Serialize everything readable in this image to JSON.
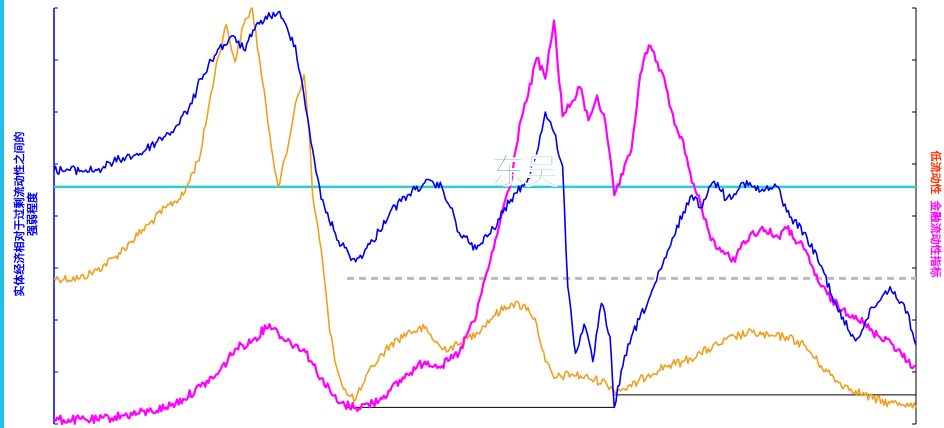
{
  "chart_data": {
    "type": "line",
    "title": "",
    "y_left_label": [
      "实体经济相对于过剩流动性之间的",
      "强弱程度"
    ],
    "y_right_label": [
      "低流动性",
      "金融流动性指标"
    ],
    "watermark": "东吴",
    "grid": false,
    "legend": "none",
    "x_range": [
      0,
      100
    ],
    "y_range": [
      0,
      100
    ],
    "reference_lines": [
      {
        "name": "cyan-horizontal",
        "y": 57,
        "x_from": 0,
        "x_to": 100,
        "color": "#33cccc"
      },
      {
        "name": "gray-dashed",
        "y": 35,
        "x_from": 34,
        "x_to": 100,
        "color": "#bbbbbb"
      },
      {
        "name": "black-line-1",
        "y": 4,
        "x_from": 34,
        "x_to": 65,
        "color": "#000000"
      },
      {
        "name": "black-line-2",
        "y": 7,
        "x_from": 65,
        "x_to": 100,
        "color": "#000000"
      }
    ],
    "series": [
      {
        "color": "#0000ee",
        "points": [
          [
            0,
            61
          ],
          [
            5,
            61
          ],
          [
            8,
            64
          ],
          [
            10,
            65
          ],
          [
            12,
            68
          ],
          [
            14,
            71
          ],
          [
            16,
            77
          ],
          [
            17,
            83
          ],
          [
            19,
            90
          ],
          [
            21,
            93
          ],
          [
            22,
            90
          ],
          [
            24,
            97
          ],
          [
            26,
            99
          ],
          [
            28,
            91
          ],
          [
            29,
            79
          ],
          [
            30,
            66
          ],
          [
            31,
            54
          ],
          [
            33,
            44
          ],
          [
            35,
            39
          ],
          [
            37,
            44
          ],
          [
            39,
            51
          ],
          [
            41,
            55
          ],
          [
            43,
            58
          ],
          [
            45,
            57
          ],
          [
            46,
            52
          ],
          [
            47,
            46
          ],
          [
            49,
            42
          ],
          [
            51,
            47
          ],
          [
            53,
            54
          ],
          [
            55,
            59
          ],
          [
            56,
            65
          ],
          [
            57,
            75
          ],
          [
            58,
            70
          ],
          [
            59,
            62
          ],
          [
            59.6,
            33
          ],
          [
            60.5,
            17
          ],
          [
            61.5,
            24
          ],
          [
            62.5,
            15
          ],
          [
            63.5,
            29
          ],
          [
            64.5,
            21
          ],
          [
            65,
            4
          ],
          [
            66,
            14
          ],
          [
            67,
            21
          ],
          [
            69,
            30
          ],
          [
            71,
            40
          ],
          [
            73,
            51
          ],
          [
            74,
            55
          ],
          [
            75,
            52
          ],
          [
            76,
            57
          ],
          [
            77,
            58
          ],
          [
            78,
            54
          ],
          [
            80,
            58
          ],
          [
            82,
            56
          ],
          [
            84,
            57
          ],
          [
            85,
            51
          ],
          [
            87,
            46
          ],
          [
            89,
            38
          ],
          [
            91,
            27
          ],
          [
            93,
            20
          ],
          [
            95,
            28
          ],
          [
            97,
            33
          ],
          [
            99,
            27
          ],
          [
            100,
            19
          ]
        ]
      },
      {
        "color": "#f0a020",
        "points": [
          [
            0,
            35
          ],
          [
            3,
            35
          ],
          [
            5,
            37
          ],
          [
            7,
            40
          ],
          [
            9,
            44
          ],
          [
            11,
            48
          ],
          [
            13,
            52
          ],
          [
            15,
            55
          ],
          [
            17,
            65
          ],
          [
            18,
            77
          ],
          [
            19,
            88
          ],
          [
            20,
            96
          ],
          [
            21,
            87
          ],
          [
            22,
            96
          ],
          [
            23,
            100
          ],
          [
            24,
            85
          ],
          [
            25,
            70
          ],
          [
            26,
            57
          ],
          [
            27,
            65
          ],
          [
            28,
            77
          ],
          [
            29,
            84
          ],
          [
            29.6,
            70
          ],
          [
            30,
            55
          ],
          [
            31,
            42
          ],
          [
            32,
            22
          ],
          [
            33,
            12
          ],
          [
            34,
            7
          ],
          [
            35,
            6
          ],
          [
            36,
            10
          ],
          [
            37,
            14
          ],
          [
            39,
            19
          ],
          [
            41,
            22
          ],
          [
            43,
            23
          ],
          [
            45,
            18
          ],
          [
            47,
            19
          ],
          [
            49,
            22
          ],
          [
            51,
            26
          ],
          [
            53,
            29
          ],
          [
            55,
            28
          ],
          [
            56,
            24
          ],
          [
            57,
            15
          ],
          [
            58,
            11
          ],
          [
            60,
            12
          ],
          [
            62,
            11
          ],
          [
            64,
            10
          ],
          [
            65,
            8
          ],
          [
            67,
            9
          ],
          [
            69,
            12
          ],
          [
            71,
            14
          ],
          [
            73,
            15
          ],
          [
            75,
            17
          ],
          [
            77,
            19
          ],
          [
            79,
            21
          ],
          [
            81,
            22
          ],
          [
            83,
            21
          ],
          [
            85,
            21
          ],
          [
            87,
            19
          ],
          [
            89,
            14
          ],
          [
            91,
            10
          ],
          [
            93,
            8
          ],
          [
            95,
            6
          ],
          [
            97,
            5
          ],
          [
            99,
            5
          ],
          [
            100,
            4
          ]
        ]
      },
      {
        "color": "#ff00ff",
        "points": [
          [
            0,
            1
          ],
          [
            5,
            1
          ],
          [
            8,
            2
          ],
          [
            11,
            3
          ],
          [
            13,
            4
          ],
          [
            15,
            6
          ],
          [
            17,
            9
          ],
          [
            19,
            12
          ],
          [
            21,
            18
          ],
          [
            23,
            20
          ],
          [
            25,
            24
          ],
          [
            26,
            22
          ],
          [
            27,
            20
          ],
          [
            29,
            18
          ],
          [
            31,
            11
          ],
          [
            33,
            5
          ],
          [
            35,
            4
          ],
          [
            37,
            5
          ],
          [
            39,
            8
          ],
          [
            41,
            12
          ],
          [
            43,
            15
          ],
          [
            45,
            14
          ],
          [
            47,
            17
          ],
          [
            48,
            22
          ],
          [
            49,
            26
          ],
          [
            50,
            35
          ],
          [
            51,
            42
          ],
          [
            52,
            51
          ],
          [
            53,
            58
          ],
          [
            54,
            72
          ],
          [
            55,
            79
          ],
          [
            56,
            88
          ],
          [
            57,
            83
          ],
          [
            58,
            97
          ],
          [
            59,
            74
          ],
          [
            60,
            77
          ],
          [
            61,
            81
          ],
          [
            62,
            73
          ],
          [
            63,
            79
          ],
          [
            64,
            72
          ],
          [
            65,
            55
          ],
          [
            66,
            60
          ],
          [
            67,
            66
          ],
          [
            68,
            84
          ],
          [
            69,
            91
          ],
          [
            70,
            87
          ],
          [
            71,
            81
          ],
          [
            72,
            72
          ],
          [
            73,
            68
          ],
          [
            74,
            58
          ],
          [
            75,
            53
          ],
          [
            76,
            46
          ],
          [
            77,
            42
          ],
          [
            78,
            41
          ],
          [
            79,
            39
          ],
          [
            80,
            44
          ],
          [
            82,
            47
          ],
          [
            84,
            45
          ],
          [
            85,
            47
          ],
          [
            87,
            42
          ],
          [
            89,
            33
          ],
          [
            91,
            28
          ],
          [
            93,
            26
          ],
          [
            95,
            22
          ],
          [
            97,
            20
          ],
          [
            99,
            15
          ],
          [
            100,
            14
          ]
        ]
      }
    ]
  }
}
